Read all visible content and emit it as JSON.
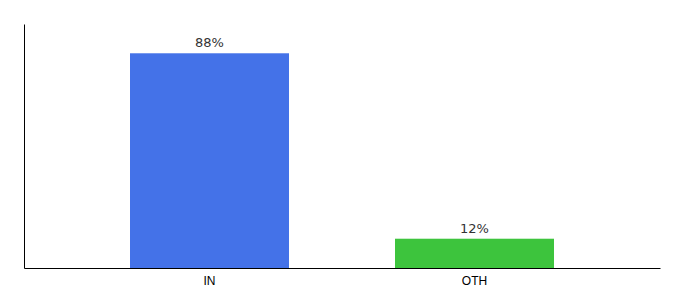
{
  "chart_data": {
    "type": "bar",
    "categories": [
      "IN",
      "OTH"
    ],
    "values": [
      88,
      12
    ],
    "value_labels": [
      "88%",
      "12%"
    ],
    "data_labels": true,
    "colors": [
      "#4472e8",
      "#3dc43d"
    ],
    "ylim": [
      0,
      100
    ],
    "tick_labels": "x"
  }
}
